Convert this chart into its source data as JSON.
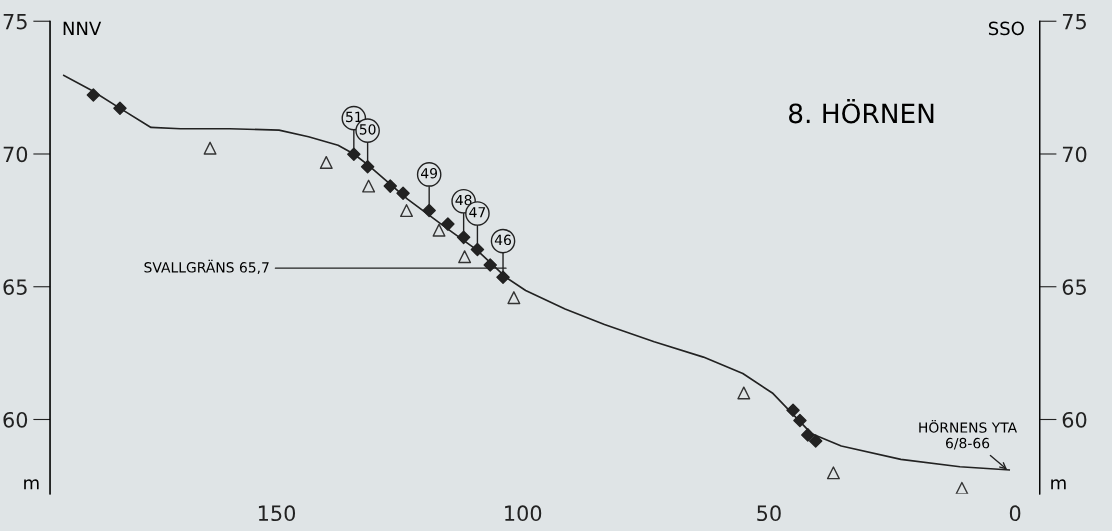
{
  "chart_data": {
    "type": "line",
    "title": "8. HÖRNEN",
    "xlim": [
      196,
      -5
    ],
    "xticks": [
      150,
      100,
      50,
      0
    ],
    "ylim": [
      57.2,
      75
    ],
    "yticks": [
      60,
      65,
      70,
      75
    ],
    "y2lim": [
      57.2,
      75
    ],
    "y2ticks": [
      60,
      65,
      70,
      75
    ],
    "grid": false,
    "legend": false,
    "series": [
      {
        "color": "#222222",
        "marker": "none",
        "line_style": "solid",
        "x": [
          193.2,
          187.6,
          181.6,
          175.5,
          169.5,
          159.5,
          149.5,
          143.5,
          137.5,
          134.3,
          131.5,
          123.4,
          115.4,
          109.4,
          103.4,
          99.4,
          91.4,
          83.4,
          73.3,
          63.3,
          55.3,
          49.3,
          45.3,
          41.3,
          35.3,
          23.2,
          11.2,
          1.2
        ],
        "values": [
          72.96,
          72.4,
          71.7,
          71.0,
          70.95,
          70.95,
          70.9,
          70.65,
          70.33,
          70.0,
          69.6,
          68.3,
          67.2,
          66.4,
          65.35,
          64.86,
          64.16,
          63.58,
          62.93,
          62.35,
          61.73,
          61.0,
          60.23,
          59.46,
          59.0,
          58.5,
          58.22,
          58.1
        ]
      },
      {
        "type": "scatter",
        "color": "#222222",
        "marker": "diamond",
        "x": [
          187.2,
          181.8,
          134.3,
          131.5,
          126.9,
          124.3,
          119.0,
          115.2,
          112.0,
          109.2,
          106.6,
          104.0,
          45.1,
          43.7,
          42.1,
          40.5
        ],
        "values": [
          72.22,
          71.72,
          69.99,
          69.52,
          68.79,
          68.52,
          67.87,
          67.36,
          66.86,
          66.4,
          65.82,
          65.36,
          60.35,
          59.96,
          59.42,
          59.19
        ]
      },
      {
        "type": "scatter",
        "color": "#333333",
        "marker": "triangle",
        "x": [
          163.5,
          139.9,
          131.3,
          123.6,
          117.0,
          111.8,
          101.8,
          55.1,
          36.9,
          10.8
        ],
        "values": [
          70.22,
          69.68,
          68.79,
          67.87,
          67.13,
          66.13,
          64.59,
          61.0,
          57.99,
          57.41
        ]
      }
    ],
    "annotations": [
      "NNV",
      "SSO",
      "m",
      "m",
      {
        "text": "51",
        "x": 134.3,
        "y": 69.99
      },
      {
        "text": "50",
        "x": 131.5,
        "y": 69.52
      },
      {
        "text": "49",
        "x": 119.0,
        "y": 67.87
      },
      {
        "text": "48",
        "x": 112.0,
        "y": 66.86
      },
      {
        "text": "47",
        "x": 109.2,
        "y": 66.4
      },
      {
        "text": "46",
        "x": 104.0,
        "y": 65.36
      },
      {
        "text": "SVALLGRÄNS 65,7",
        "x": 103.4,
        "y": 65.7
      },
      {
        "text": "HÖRNENS YTA\n6/8-66",
        "x": 1.2,
        "y": 58.05
      }
    ]
  }
}
